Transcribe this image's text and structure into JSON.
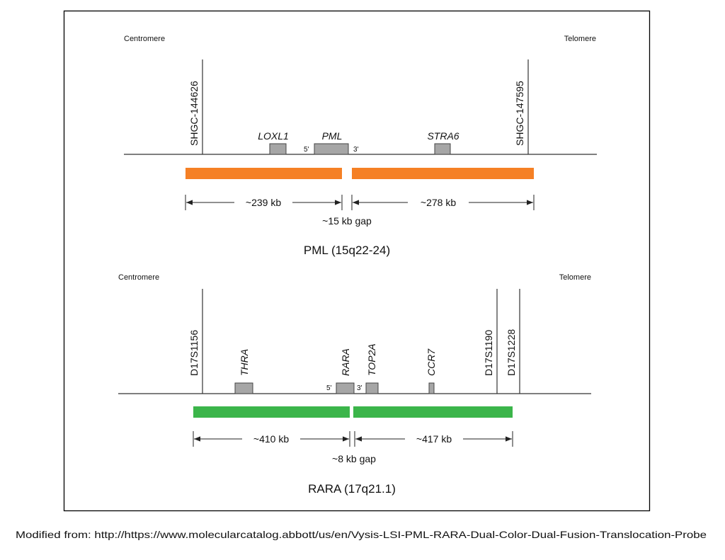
{
  "panels": [
    {
      "centromere": "Centromere",
      "telomere": "Telomere",
      "markers": [
        "SHGC-144626",
        "SHGC-147595"
      ],
      "genes": [
        "LOXL1",
        "PML",
        "STRA6"
      ],
      "five_prime": "5'",
      "three_prime": "3'",
      "left_size": "~239 kb",
      "right_size": "~278 kb",
      "gap": "~15 kb gap",
      "caption": "PML (15q22-24)"
    },
    {
      "centromere": "Centromere",
      "telomere": "Telomere",
      "markers": [
        "D17S1156",
        "D17S1190",
        "D17S1228"
      ],
      "genes": [
        "THRA",
        "RARA",
        "TOP2A",
        "CCR7"
      ],
      "five_prime": "5'",
      "three_prime": "3'",
      "left_size": "~410 kb",
      "right_size": "~417 kb",
      "gap": "~8 kb gap",
      "caption": "RARA (17q21.1)"
    }
  ],
  "footer": "Modified from: http://https://www.molecularcatalog.abbott/us/en/Vysis-LSI-PML-RARA-Dual-Color-Dual-Fusion-Translocation-Probe"
}
